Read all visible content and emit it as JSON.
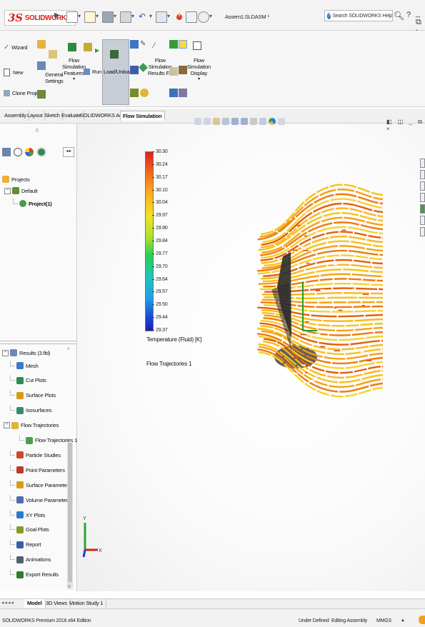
{
  "app": {
    "brand_prefix": "3S",
    "brand": "SOLIDWORKS",
    "document_title": "Assem1.SLDASM *",
    "search_placeholder": "Search SOLIDWORKS Help",
    "help_label": "?",
    "minimize_label": "_ ⧉ ›"
  },
  "ribbon": {
    "wizard": "Wizard",
    "new": "New",
    "clone_project": "Clone Project",
    "general_settings_1": "General",
    "general_settings_2": "Settings",
    "flow_sim_features_1": "Flow",
    "flow_sim_features_2": "Simulation",
    "flow_sim_features_3": "Features",
    "run": "Run",
    "load_unload": "Load/Unload",
    "flow_sim_results_1": "Flow",
    "flow_sim_results_2": "Simulation",
    "flow_sim_results_3": "Results F...",
    "flow_sim_display_1": "Flow",
    "flow_sim_display_2": "Simulation",
    "flow_sim_display_3": "Display"
  },
  "tabs": [
    "Assembly",
    "Layout",
    "Sketch",
    "Evaluate",
    "SOLIDWORKS Add-Ins",
    "Flow Simulation"
  ],
  "active_tab": "Flow Simulation",
  "feature_tree": {
    "collapse_marker": "◊",
    "projects": "Projects",
    "default": "Default",
    "project1": "Project(1)"
  },
  "results_tree": {
    "root": "Results (3.fld)",
    "items": [
      "Mesh",
      "Cut Plots",
      "Surface Plots",
      "Isosurfaces",
      "Flow Trajectories",
      "Flow Trajectories 1",
      "Particle Studies",
      "Point Parameters",
      "Surface Parameters",
      "Volume Parameters",
      "XY Plots",
      "Goal Plots",
      "Report",
      "Animations",
      "Export Results"
    ]
  },
  "legend": {
    "ticks": [
      "30.30",
      "30.24",
      "30.17",
      "30.10",
      "30.04",
      "29.97",
      "29.90",
      "29.84",
      "29.77",
      "29.70",
      "29.64",
      "29.57",
      "29.50",
      "29.44",
      "29.37"
    ],
    "label": "Temperature (Fluid) [K]",
    "plot_name": "Flow Trajectories 1",
    "colors_top_to_bottom": [
      "#e02020",
      "#f26b1d",
      "#ffb21a",
      "#f2e222",
      "#a8e22c",
      "#27cf52",
      "#1cc7ba",
      "#1d9fe8",
      "#1a44d6",
      "#1e1cb0"
    ]
  },
  "triad": {
    "y": "Y",
    "x": "X"
  },
  "bottom_tabs": [
    "Model",
    "3D Views",
    "Motion Study 1"
  ],
  "active_bottom_tab": "Model",
  "status": {
    "edition": "SOLIDWORKS Premium 2016 x64 Edition",
    "defined": "Under Defined",
    "mode": "Editing Assembly",
    "units": "MMGS",
    "units_arrow": "▲"
  },
  "colors": {
    "brand_red": "#d8231c",
    "accent_blue": "#2f6fc9",
    "trajectory_orange": "#f5a012"
  }
}
